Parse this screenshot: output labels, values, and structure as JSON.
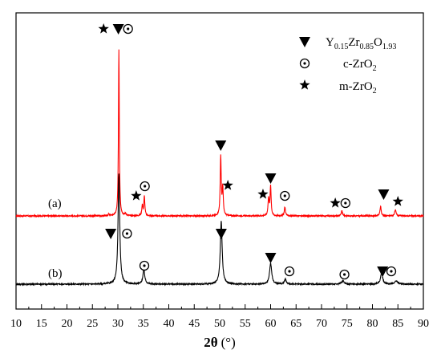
{
  "chart_data": {
    "type": "line",
    "xlabel_symbol": "2θ",
    "xlabel_unit": "(°)",
    "xlim": [
      10,
      90
    ],
    "xticks": [
      10,
      15,
      20,
      25,
      30,
      35,
      40,
      45,
      50,
      55,
      60,
      65,
      70,
      75,
      80,
      85,
      90
    ],
    "y_axis_labels_shown": false,
    "colors": {
      "a": "#ff0000",
      "b": "#000000"
    },
    "legend": [
      {
        "marker": "triangle-down",
        "label_parts": [
          "Y",
          "0.15",
          "Zr",
          "0.85",
          "O",
          "1.93"
        ]
      },
      {
        "marker": "circle-dot",
        "label_parts": [
          "c-ZrO",
          "2"
        ]
      },
      {
        "marker": "star",
        "label_parts": [
          "m-ZrO",
          "2"
        ]
      }
    ],
    "series": [
      {
        "name": "(a)",
        "color": "#ff0000",
        "baseline": 0,
        "noise": 1.5,
        "peaks": [
          {
            "x": 28.2,
            "h": 2,
            "w": 0.14
          },
          {
            "x": 30.2,
            "h": 208,
            "w": 0.1
          },
          {
            "x": 31.5,
            "h": 3,
            "w": 0.15
          },
          {
            "x": 34.8,
            "h": 13,
            "w": 0.12
          },
          {
            "x": 35.2,
            "h": 24,
            "w": 0.12
          },
          {
            "x": 50.2,
            "h": 74,
            "w": 0.12
          },
          {
            "x": 50.6,
            "h": 34,
            "w": 0.12
          },
          {
            "x": 59.6,
            "h": 22,
            "w": 0.13
          },
          {
            "x": 60.0,
            "h": 37,
            "w": 0.12
          },
          {
            "x": 62.8,
            "h": 11,
            "w": 0.14
          },
          {
            "x": 74.0,
            "h": 6,
            "w": 0.16
          },
          {
            "x": 81.6,
            "h": 12,
            "w": 0.14
          },
          {
            "x": 84.5,
            "h": 7,
            "w": 0.18
          }
        ],
        "markers": [
          {
            "type": "star",
            "x": 27.2,
            "y": 233
          },
          {
            "type": "triangle-down",
            "x": 30.1,
            "y": 233
          },
          {
            "type": "circle-dot",
            "x": 32.0,
            "y": 233
          },
          {
            "type": "star",
            "x": 33.6,
            "y": 25
          },
          {
            "type": "circle-dot",
            "x": 35.3,
            "y": 37
          },
          {
            "type": "triangle-down",
            "x": 50.2,
            "y": 88
          },
          {
            "type": "star",
            "x": 51.6,
            "y": 38
          },
          {
            "type": "star",
            "x": 58.5,
            "y": 27
          },
          {
            "type": "triangle-down",
            "x": 60.0,
            "y": 47
          },
          {
            "type": "circle-dot",
            "x": 62.8,
            "y": 25
          },
          {
            "type": "star",
            "x": 72.7,
            "y": 16
          },
          {
            "type": "circle-dot",
            "x": 74.7,
            "y": 16
          },
          {
            "type": "triangle-down",
            "x": 82.2,
            "y": 27
          },
          {
            "type": "star",
            "x": 85.0,
            "y": 18
          }
        ]
      },
      {
        "name": "(b)",
        "color": "#000000",
        "baseline": -85,
        "noise": 1.5,
        "peaks": [
          {
            "x": 30.2,
            "h": 137,
            "w": 0.2
          },
          {
            "x": 35.1,
            "h": 18,
            "w": 0.22
          },
          {
            "x": 50.3,
            "h": 78,
            "w": 0.22
          },
          {
            "x": 60.0,
            "h": 26,
            "w": 0.25
          },
          {
            "x": 62.9,
            "h": 6,
            "w": 0.22
          },
          {
            "x": 74.2,
            "h": 4,
            "w": 0.3
          },
          {
            "x": 81.8,
            "h": 14,
            "w": 0.25
          },
          {
            "x": 84.7,
            "h": 4,
            "w": 0.35
          }
        ],
        "markers": [
          {
            "type": "triangle-down",
            "x": 28.6,
            "y": 63
          },
          {
            "type": "circle-dot",
            "x": 31.8,
            "y": 63
          },
          {
            "type": "circle-dot",
            "x": 35.2,
            "y": 23
          },
          {
            "type": "triangle-down",
            "x": 50.3,
            "y": 63
          },
          {
            "type": "triangle-down",
            "x": 60.0,
            "y": 33
          },
          {
            "type": "circle-dot",
            "x": 63.7,
            "y": 16
          },
          {
            "type": "circle-dot",
            "x": 74.5,
            "y": 12
          },
          {
            "type": "triangle-down",
            "x": 82.0,
            "y": 16
          },
          {
            "type": "circle-dot",
            "x": 83.7,
            "y": 16
          }
        ]
      }
    ]
  }
}
